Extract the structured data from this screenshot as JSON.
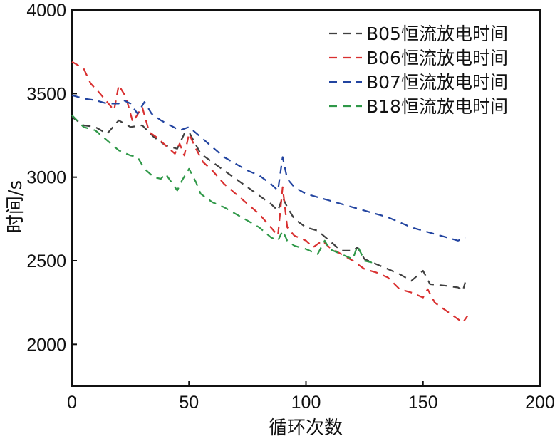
{
  "chart_data": {
    "type": "line",
    "title": "",
    "xlabel": "循环次数",
    "ylabel": "时间/s",
    "xlim": [
      0,
      200
    ],
    "ylim": [
      1750,
      4000
    ],
    "xticks": [
      {
        "value": 0,
        "label": "0"
      },
      {
        "value": 50,
        "label": "50"
      },
      {
        "value": 100,
        "label": "100"
      },
      {
        "value": 150,
        "label": "150"
      },
      {
        "value": 200,
        "label": "200"
      }
    ],
    "yticks": [
      {
        "value": 2000,
        "label": "2000"
      },
      {
        "value": 2500,
        "label": "2500"
      },
      {
        "value": 3000,
        "label": "3000"
      },
      {
        "value": 3500,
        "label": "3500"
      },
      {
        "value": 4000,
        "label": "4000"
      }
    ],
    "grid": false,
    "legend_position": "top-right",
    "series": [
      {
        "name": "B05恒流放电时间",
        "color": "#404040",
        "points": [
          [
            0,
            3360
          ],
          [
            5,
            3310
          ],
          [
            10,
            3300
          ],
          [
            15,
            3260
          ],
          [
            20,
            3340
          ],
          [
            25,
            3300
          ],
          [
            30,
            3310
          ],
          [
            35,
            3240
          ],
          [
            40,
            3190
          ],
          [
            45,
            3170
          ],
          [
            48,
            3260
          ],
          [
            50,
            3270
          ],
          [
            55,
            3140
          ],
          [
            60,
            3090
          ],
          [
            65,
            3040
          ],
          [
            70,
            2990
          ],
          [
            75,
            2940
          ],
          [
            80,
            2890
          ],
          [
            85,
            2840
          ],
          [
            88,
            2800
          ],
          [
            90,
            2880
          ],
          [
            92,
            2820
          ],
          [
            95,
            2750
          ],
          [
            100,
            2700
          ],
          [
            105,
            2680
          ],
          [
            110,
            2620
          ],
          [
            115,
            2560
          ],
          [
            120,
            2560
          ],
          [
            122,
            2580
          ],
          [
            125,
            2510
          ],
          [
            130,
            2480
          ],
          [
            135,
            2450
          ],
          [
            140,
            2420
          ],
          [
            145,
            2380
          ],
          [
            150,
            2440
          ],
          [
            153,
            2360
          ],
          [
            160,
            2350
          ],
          [
            165,
            2340
          ],
          [
            167,
            2320
          ],
          [
            168,
            2370
          ]
        ]
      },
      {
        "name": "B06恒流放电时间",
        "color": "#d93030",
        "points": [
          [
            0,
            3690
          ],
          [
            5,
            3650
          ],
          [
            8,
            3560
          ],
          [
            12,
            3500
          ],
          [
            15,
            3450
          ],
          [
            18,
            3400
          ],
          [
            20,
            3550
          ],
          [
            23,
            3480
          ],
          [
            26,
            3330
          ],
          [
            30,
            3420
          ],
          [
            33,
            3270
          ],
          [
            36,
            3240
          ],
          [
            40,
            3190
          ],
          [
            44,
            3140
          ],
          [
            46,
            3200
          ],
          [
            48,
            3130
          ],
          [
            50,
            3260
          ],
          [
            53,
            3170
          ],
          [
            56,
            3090
          ],
          [
            60,
            3040
          ],
          [
            65,
            2960
          ],
          [
            70,
            2900
          ],
          [
            75,
            2840
          ],
          [
            80,
            2780
          ],
          [
            85,
            2700
          ],
          [
            88,
            2650
          ],
          [
            90,
            2940
          ],
          [
            92,
            2700
          ],
          [
            95,
            2650
          ],
          [
            100,
            2620
          ],
          [
            103,
            2580
          ],
          [
            107,
            2620
          ],
          [
            110,
            2580
          ],
          [
            115,
            2540
          ],
          [
            120,
            2500
          ],
          [
            125,
            2450
          ],
          [
            130,
            2430
          ],
          [
            135,
            2400
          ],
          [
            140,
            2330
          ],
          [
            145,
            2310
          ],
          [
            150,
            2280
          ],
          [
            152,
            2330
          ],
          [
            155,
            2250
          ],
          [
            160,
            2200
          ],
          [
            165,
            2150
          ],
          [
            167,
            2130
          ],
          [
            169,
            2170
          ]
        ]
      },
      {
        "name": "B07恒流放电时间",
        "color": "#2244a0",
        "points": [
          [
            0,
            3490
          ],
          [
            5,
            3470
          ],
          [
            10,
            3460
          ],
          [
            15,
            3440
          ],
          [
            20,
            3440
          ],
          [
            22,
            3460
          ],
          [
            25,
            3440
          ],
          [
            28,
            3380
          ],
          [
            31,
            3450
          ],
          [
            34,
            3380
          ],
          [
            38,
            3340
          ],
          [
            42,
            3310
          ],
          [
            46,
            3280
          ],
          [
            50,
            3300
          ],
          [
            55,
            3240
          ],
          [
            60,
            3180
          ],
          [
            65,
            3120
          ],
          [
            70,
            3080
          ],
          [
            75,
            3040
          ],
          [
            80,
            3010
          ],
          [
            85,
            2960
          ],
          [
            88,
            2920
          ],
          [
            90,
            3120
          ],
          [
            92,
            2990
          ],
          [
            95,
            2940
          ],
          [
            100,
            2900
          ],
          [
            105,
            2880
          ],
          [
            110,
            2860
          ],
          [
            115,
            2840
          ],
          [
            120,
            2820
          ],
          [
            125,
            2800
          ],
          [
            130,
            2780
          ],
          [
            135,
            2760
          ],
          [
            140,
            2730
          ],
          [
            145,
            2700
          ],
          [
            150,
            2680
          ],
          [
            155,
            2660
          ],
          [
            160,
            2640
          ],
          [
            165,
            2620
          ],
          [
            168,
            2640
          ]
        ]
      },
      {
        "name": "B18恒流放电时间",
        "color": "#2f9848",
        "points": [
          [
            0,
            3370
          ],
          [
            5,
            3300
          ],
          [
            10,
            3280
          ],
          [
            15,
            3220
          ],
          [
            20,
            3160
          ],
          [
            25,
            3130
          ],
          [
            28,
            3120
          ],
          [
            31,
            3050
          ],
          [
            35,
            3000
          ],
          [
            38,
            2990
          ],
          [
            40,
            3020
          ],
          [
            43,
            2960
          ],
          [
            45,
            2920
          ],
          [
            47,
            2980
          ],
          [
            50,
            3050
          ],
          [
            53,
            2970
          ],
          [
            55,
            2900
          ],
          [
            60,
            2850
          ],
          [
            65,
            2820
          ],
          [
            70,
            2780
          ],
          [
            75,
            2740
          ],
          [
            80,
            2700
          ],
          [
            85,
            2640
          ],
          [
            88,
            2620
          ],
          [
            90,
            2680
          ],
          [
            92,
            2620
          ],
          [
            95,
            2590
          ],
          [
            100,
            2570
          ],
          [
            105,
            2540
          ],
          [
            108,
            2620
          ],
          [
            110,
            2570
          ],
          [
            115,
            2540
          ],
          [
            120,
            2510
          ],
          [
            122,
            2590
          ],
          [
            125,
            2500
          ],
          [
            128,
            2490
          ],
          [
            130,
            2510
          ]
        ]
      }
    ]
  }
}
